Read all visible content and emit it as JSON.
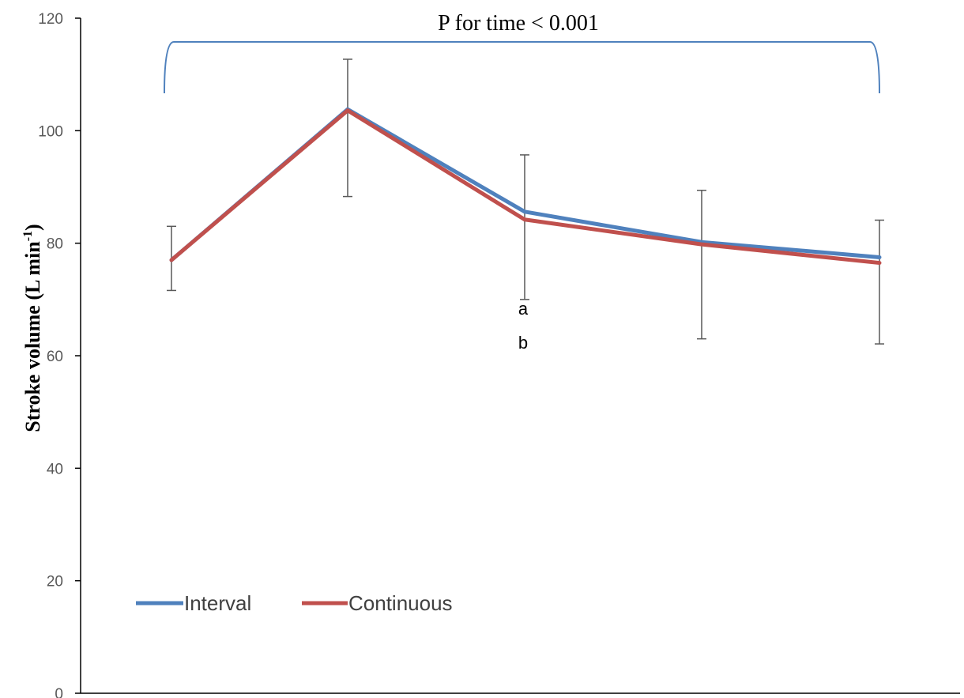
{
  "chart_data": {
    "type": "line",
    "x": [
      "",
      "",
      "",
      "",
      ""
    ],
    "series": [
      {
        "name": "Interval",
        "color": "#4F81BD",
        "values": [
          77,
          103.8,
          85.6,
          80.2,
          77.5
        ]
      },
      {
        "name": "Continuous",
        "color": "#C0504D",
        "values": [
          77,
          103.6,
          84.2,
          79.8,
          76.5
        ]
      }
    ],
    "error_bars": {
      "upper": [
        83,
        112.7,
        95.7,
        89.4,
        84.1
      ],
      "lower": [
        71.6,
        88.3,
        70,
        63,
        62.1
      ]
    },
    "ylim": [
      0,
      120
    ],
    "yticks": [
      0,
      20,
      40,
      60,
      80,
      100,
      120
    ],
    "ylabel": "Stroke volume (L min",
    "ylabel_superscript": "-1",
    "ylabel_close": ")",
    "annotations": {
      "bracket_text": "P for time < 0.001",
      "letter_a": "a",
      "letter_b": "b"
    },
    "legend": {
      "position": "bottom-left"
    },
    "grid": false
  }
}
